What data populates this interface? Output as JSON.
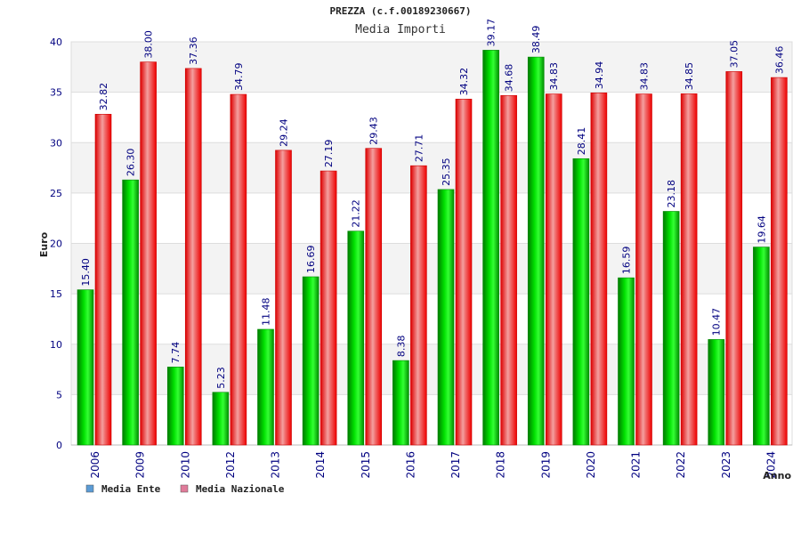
{
  "chart_data": {
    "type": "bar",
    "title": "PREZZA (c.f.00189230667)",
    "subtitle": "Media Importi",
    "xlabel": "Anno",
    "ylabel": "Euro",
    "ylim": [
      0,
      40
    ],
    "yticks": [
      0,
      5,
      10,
      15,
      20,
      25,
      30,
      35,
      40
    ],
    "grid": true,
    "legend_position": "bottom-left",
    "categories": [
      "2006",
      "2009",
      "2010",
      "2012",
      "2013",
      "2014",
      "2015",
      "2016",
      "2017",
      "2018",
      "2019",
      "2020",
      "2021",
      "2022",
      "2023",
      "2024"
    ],
    "series": [
      {
        "name": "Media Ente",
        "color": "#00cc00",
        "legend_color": "#5b9bd5",
        "values": [
          15.4,
          26.3,
          7.74,
          5.23,
          11.48,
          16.69,
          21.22,
          8.38,
          25.35,
          39.17,
          38.49,
          28.41,
          16.59,
          23.18,
          10.47,
          19.64
        ],
        "labels": [
          "15.40",
          "26.30",
          "7.74",
          "5.23",
          "11.48",
          "16.69",
          "21.22",
          "8.38",
          "25.35",
          "39.17",
          "38.49",
          "28.41",
          "16.59",
          "23.18",
          "10.47",
          "19.64"
        ]
      },
      {
        "name": "Media Nazionale",
        "color": "#ee1111",
        "legend_color": "#e07b9a",
        "values": [
          32.82,
          38.0,
          37.36,
          34.79,
          29.24,
          27.19,
          29.43,
          27.71,
          34.32,
          34.68,
          34.83,
          34.94,
          34.83,
          34.85,
          37.05,
          36.46
        ],
        "labels": [
          "32.82",
          "38.00",
          "37.36",
          "34.79",
          "29.24",
          "27.19",
          "29.43",
          "27.71",
          "34.32",
          "34.68",
          "34.83",
          "34.94",
          "34.83",
          "34.85",
          "37.05",
          "36.46"
        ]
      }
    ]
  }
}
